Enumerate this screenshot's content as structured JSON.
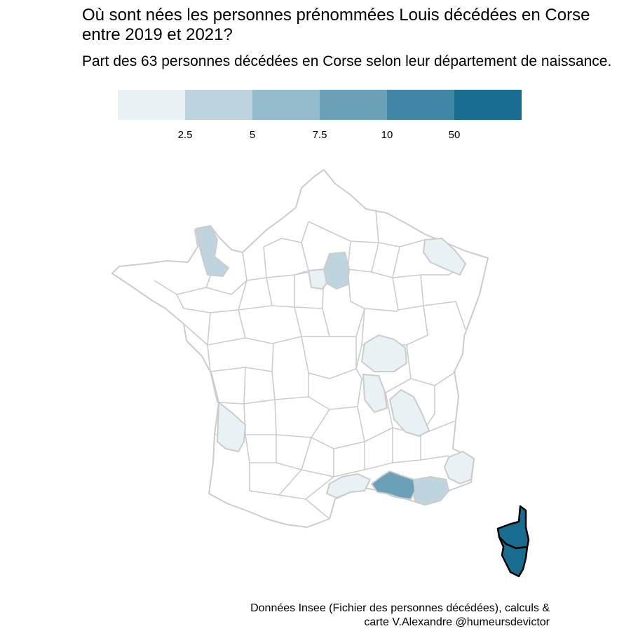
{
  "title": "Où sont nées les personnes prénommées Louis décédées en Corse entre 2019 et 2021?",
  "subtitle": "Part des 63 personnes décédées en Corse selon leur département de naissance.",
  "legend": {
    "colors": [
      "#e8f1f4",
      "#bed5df",
      "#94bbcb",
      "#6aa1b8",
      "#4186a4",
      "#176c90"
    ],
    "ticks": [
      "2.5",
      "5",
      "7.5",
      "10",
      "50"
    ]
  },
  "map": {
    "base_fill": "#ffffff",
    "border_color": "#cccccc",
    "highlighted_regions": [
      {
        "name": "Corse",
        "class": 5
      },
      {
        "name": "Bouches-du-Rhône",
        "class": 3
      },
      {
        "name": "Var",
        "class": 1
      },
      {
        "name": "Manche",
        "class": 1
      },
      {
        "name": "Seine-et-Marne",
        "class": 1
      },
      {
        "name": "Val-d'Oise",
        "class": 0
      },
      {
        "name": "Moselle",
        "class": 0
      },
      {
        "name": "Saône-et-Loire",
        "class": 0
      },
      {
        "name": "Rhône",
        "class": 0
      },
      {
        "name": "Isère",
        "class": 0
      },
      {
        "name": "Gironde",
        "class": 0
      },
      {
        "name": "Hérault",
        "class": 0
      },
      {
        "name": "Alpes-Maritimes",
        "class": 0
      }
    ]
  },
  "caption": {
    "line1": "Données Insee (Fichier des personnes décédées), calculs &",
    "line2": "carte V.Alexandre @humeursdevictor"
  }
}
